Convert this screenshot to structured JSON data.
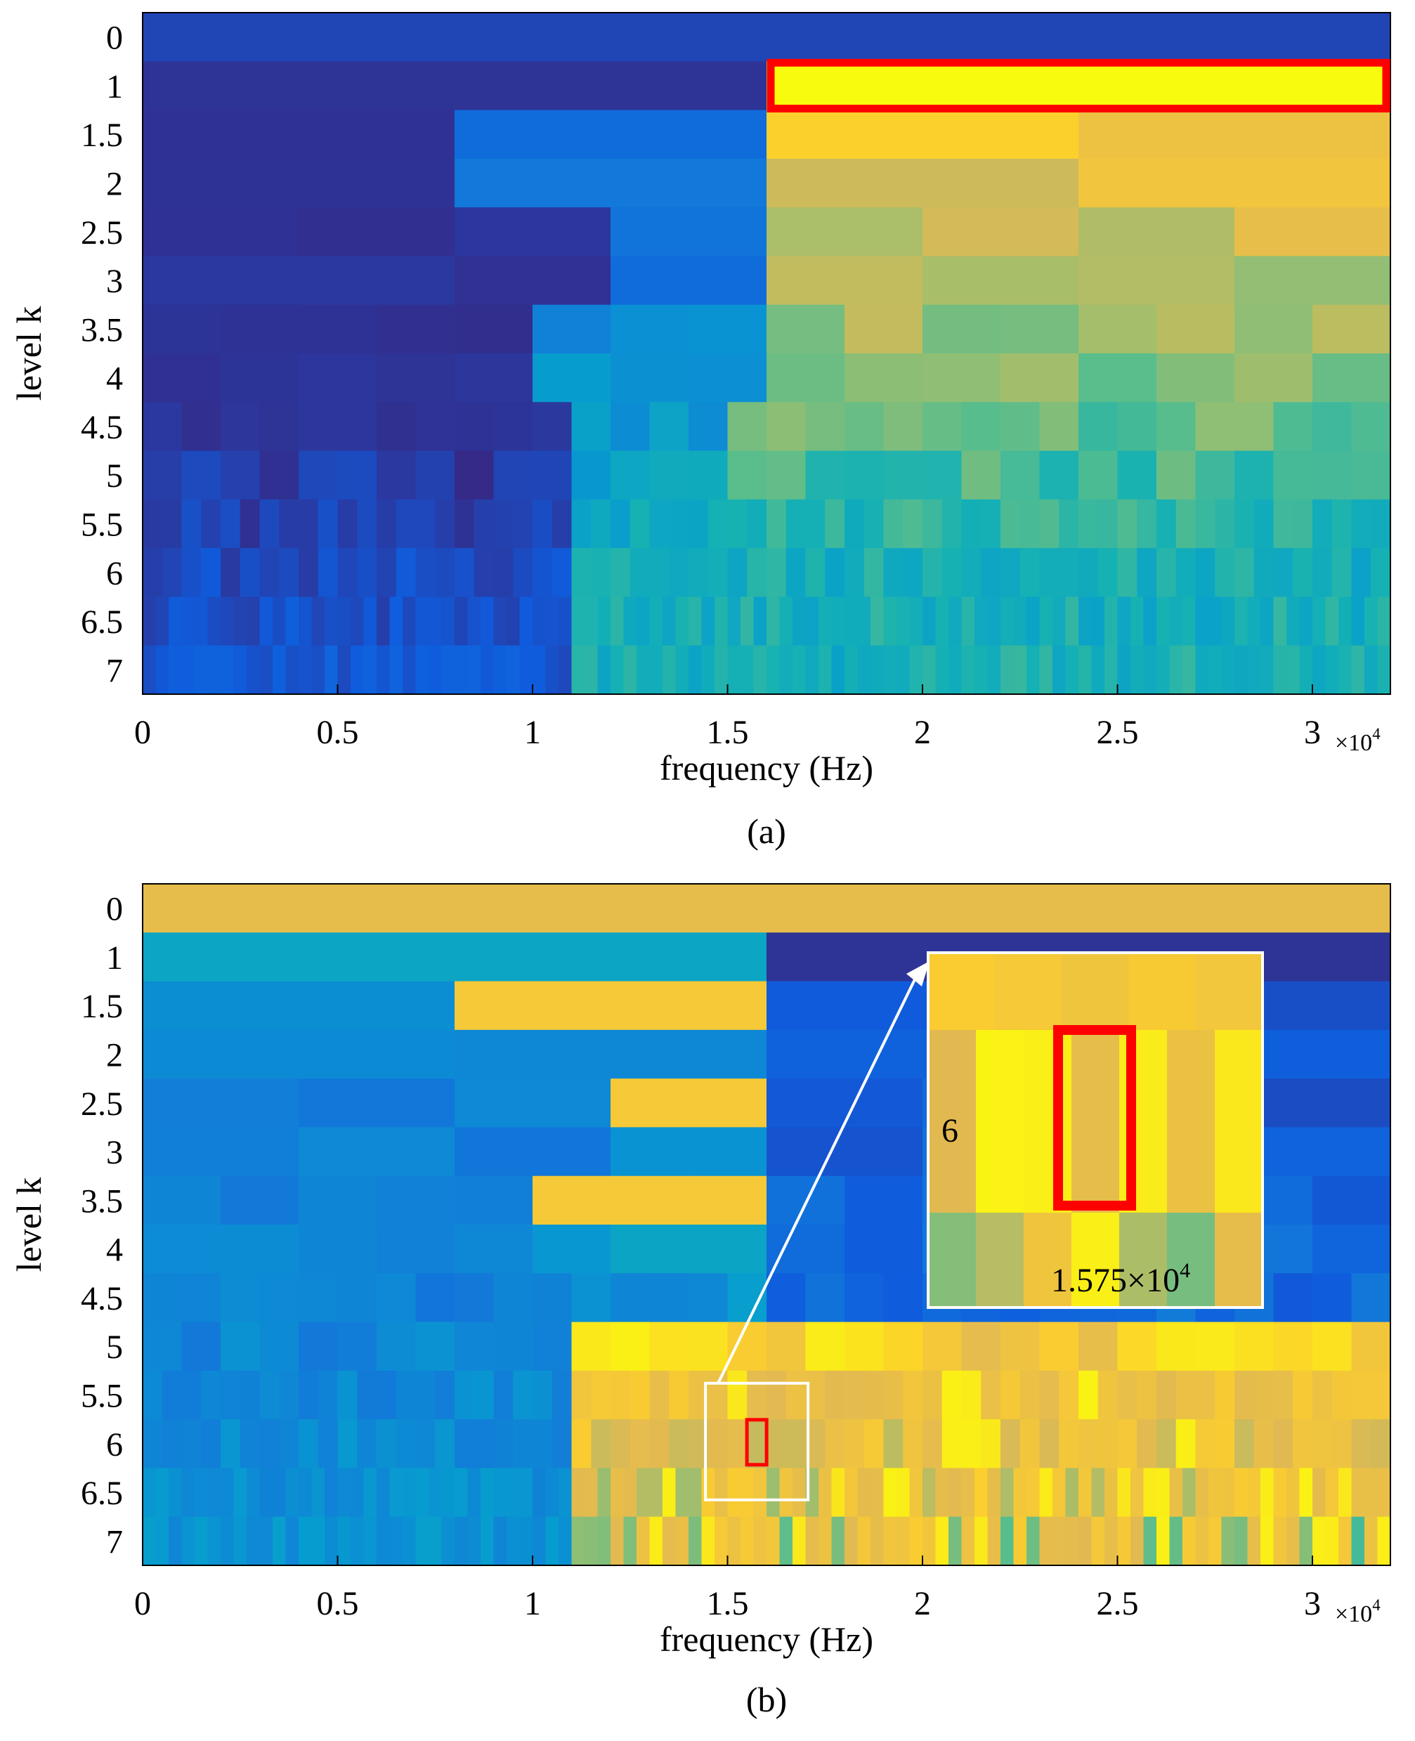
{
  "chart_data": [
    {
      "type": "heatmap",
      "panel_label": "(a)",
      "xlabel": "frequency (Hz)",
      "ylabel": "level k",
      "x_exponent": "×10",
      "x_exponent_power": "4",
      "xlim": [
        0,
        32000
      ],
      "x_ticks": [
        0,
        5000,
        10000,
        15000,
        20000,
        25000,
        30000
      ],
      "x_tick_labels": [
        "0",
        "0.5",
        "1",
        "1.5",
        "2",
        "2.5",
        "3"
      ],
      "levels": [
        "0",
        "1",
        "1.5",
        "2",
        "2.5",
        "3",
        "3.5",
        "4",
        "4.5",
        "5",
        "5.5",
        "6",
        "6.5",
        "7"
      ],
      "highlight": {
        "level": "1",
        "x_range": [
          16000,
          32000
        ]
      },
      "grid": false
    },
    {
      "type": "heatmap",
      "panel_label": "(b)",
      "xlabel": "frequency (Hz)",
      "ylabel": "level k",
      "x_exponent": "×10",
      "x_exponent_power": "4",
      "xlim": [
        0,
        32000
      ],
      "x_ticks": [
        0,
        5000,
        10000,
        15000,
        20000,
        25000,
        30000
      ],
      "x_tick_labels": [
        "0",
        "0.5",
        "1",
        "1.5",
        "2",
        "2.5",
        "3"
      ],
      "levels": [
        "0",
        "1",
        "1.5",
        "2",
        "2.5",
        "3",
        "3.5",
        "4",
        "4.5",
        "5",
        "5.5",
        "6",
        "6.5",
        "7"
      ],
      "highlight": {
        "level": "6",
        "center_frequency": 15750
      },
      "zoom_inset": {
        "level_label": "6",
        "frequency_label": "1.575×10",
        "frequency_power": "4"
      },
      "grid": false
    }
  ],
  "colors": {
    "highlight": "#ff0000",
    "inset_frame": "#ffffff",
    "parula_dark": "#352a87",
    "parula_yellow": "#f9fb0e"
  }
}
